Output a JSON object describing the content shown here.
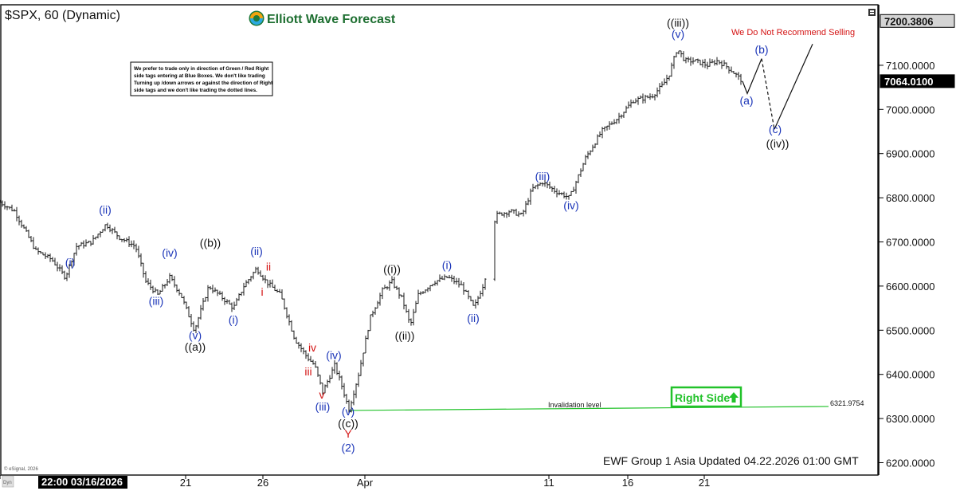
{
  "header": {
    "title": "$SPX, 60 (Dynamic)",
    "brand": "Elliott Wave Forecast"
  },
  "note": {
    "lines": [
      "We prefer to trade only in direction of Green / Red Right",
      "side tags entering at Blue Boxes. We don't like trading",
      "Turning up /down arrows or against the direction of Right",
      "side tags and we don't like trading the dotted lines."
    ]
  },
  "footer": {
    "updated": "EWF Group 1 Asia Updated 04.22.2026 01:00 GMT",
    "esignal": "© eSignal, 2026",
    "start_date": "22:00 03/16/2026",
    "corner": "Dyn"
  },
  "badges": {
    "right_side": "Right Side",
    "not_recommend": "We Do Not Recommend Selling",
    "invalidation_label": "Invalidation level",
    "invalidation_value": "6321.9754"
  },
  "colors": {
    "blue": "#1a34b8",
    "red": "#d41414",
    "green": "#22c22a",
    "black": "#111111"
  },
  "chart_data": {
    "type": "ohlc",
    "title": "$SPX, 60 (Dynamic)",
    "y_axis": {
      "min": 6200,
      "max": 7200,
      "ticks": [
        6200,
        6300,
        6400,
        6500,
        6600,
        6700,
        6800,
        6900,
        7000,
        7100
      ],
      "tick_labels": [
        "6200.0000",
        "6300.0000",
        "6400.0000",
        "6500.0000",
        "6600.0000",
        "6700.0000",
        "6800.0000",
        "6900.0000",
        "7000.0000",
        "7100.0000"
      ],
      "price_boxes": [
        {
          "label": "7200.3806",
          "value": 7200.3806
        },
        {
          "label": "7064.0100",
          "value": 7064.01
        }
      ]
    },
    "x_axis": {
      "ticks": [
        {
          "label": "22:00 03/16/2026",
          "bar": 0
        },
        {
          "label": "21",
          "bar": 233
        },
        {
          "label": "26",
          "bar": 330
        },
        {
          "label": "Apr",
          "bar": 458
        },
        {
          "label": "11",
          "bar": 689
        },
        {
          "label": "16",
          "bar": 788
        },
        {
          "label": "21",
          "bar": 884
        }
      ]
    },
    "price_path": [
      [
        0,
        6790
      ],
      [
        18,
        6770
      ],
      [
        45,
        6680
      ],
      [
        65,
        6660
      ],
      [
        82,
        6620
      ],
      [
        96,
        6690
      ],
      [
        115,
        6700
      ],
      [
        133,
        6740
      ],
      [
        150,
        6710
      ],
      [
        170,
        6690
      ],
      [
        183,
        6610
      ],
      [
        198,
        6580
      ],
      [
        213,
        6620
      ],
      [
        227,
        6580
      ],
      [
        244,
        6500
      ],
      [
        262,
        6600
      ],
      [
        275,
        6580
      ],
      [
        293,
        6550
      ],
      [
        306,
        6600
      ],
      [
        322,
        6640
      ],
      [
        334,
        6610
      ],
      [
        352,
        6580
      ],
      [
        370,
        6480
      ],
      [
        385,
        6440
      ],
      [
        395,
        6420
      ],
      [
        405,
        6360
      ],
      [
        420,
        6420
      ],
      [
        428,
        6380
      ],
      [
        438,
        6320
      ],
      [
        450,
        6400
      ],
      [
        465,
        6530
      ],
      [
        480,
        6590
      ],
      [
        492,
        6610
      ],
      [
        505,
        6570
      ],
      [
        515,
        6510
      ],
      [
        525,
        6580
      ],
      [
        545,
        6610
      ],
      [
        562,
        6620
      ],
      [
        580,
        6600
      ],
      [
        595,
        6550
      ],
      [
        608,
        6610
      ],
      [
        622,
        6760
      ],
      [
        640,
        6770
      ],
      [
        655,
        6760
      ],
      [
        668,
        6820
      ],
      [
        681,
        6835
      ],
      [
        697,
        6815
      ],
      [
        715,
        6800
      ],
      [
        735,
        6890
      ],
      [
        755,
        6950
      ],
      [
        775,
        6980
      ],
      [
        795,
        7020
      ],
      [
        818,
        7030
      ],
      [
        832,
        7055
      ],
      [
        840,
        7080
      ],
      [
        850,
        7138
      ],
      [
        860,
        7110
      ],
      [
        872,
        7110
      ],
      [
        888,
        7100
      ],
      [
        900,
        7110
      ],
      [
        910,
        7100
      ],
      [
        920,
        7085
      ],
      [
        932,
        7064
      ]
    ],
    "projection": {
      "solid": [
        [
          932,
          7064
        ],
        [
          938,
          7036
        ],
        [
          956,
          7115
        ]
      ],
      "dashed": [
        [
          956,
          7115
        ],
        [
          972,
          6955
        ]
      ],
      "arrow": [
        [
          972,
          6955
        ],
        [
          1020,
          7148
        ]
      ]
    },
    "invalidation_level": 6321.9754,
    "invalidation_span": [
      438,
      1040
    ],
    "wave_labels": [
      {
        "text": "(i)",
        "bar": 88,
        "price": 6645,
        "color": "blue"
      },
      {
        "text": "(ii)",
        "bar": 132,
        "price": 6764,
        "color": "blue"
      },
      {
        "text": "(iii)",
        "bar": 196,
        "price": 6557,
        "color": "blue"
      },
      {
        "text": "(iv)",
        "bar": 213,
        "price": 6667,
        "color": "blue"
      },
      {
        "text": "(v)",
        "bar": 245,
        "price": 6480,
        "color": "blue"
      },
      {
        "text": "((a))",
        "bar": 245,
        "price": 6454,
        "color": "black"
      },
      {
        "text": "((b))",
        "bar": 264,
        "price": 6689,
        "color": "black"
      },
      {
        "text": "(i)",
        "bar": 293,
        "price": 6515,
        "color": "blue"
      },
      {
        "text": "(ii)",
        "bar": 322,
        "price": 6670,
        "color": "blue"
      },
      {
        "text": "ii",
        "bar": 337,
        "price": 6635,
        "color": "red"
      },
      {
        "text": "i",
        "bar": 329,
        "price": 6578,
        "color": "red"
      },
      {
        "text": "iv",
        "bar": 392,
        "price": 6452,
        "color": "red"
      },
      {
        "text": "iii",
        "bar": 387,
        "price": 6398,
        "color": "red"
      },
      {
        "text": "(iv)",
        "bar": 419,
        "price": 6435,
        "color": "blue"
      },
      {
        "text": "v",
        "bar": 404,
        "price": 6345,
        "color": "red"
      },
      {
        "text": "(iii)",
        "bar": 405,
        "price": 6318,
        "color": "blue"
      },
      {
        "text": "(v)",
        "bar": 437,
        "price": 6307,
        "color": "blue"
      },
      {
        "text": "((c))",
        "bar": 437,
        "price": 6280,
        "color": "black"
      },
      {
        "text": "Y",
        "bar": 437,
        "price": 6257,
        "color": "red"
      },
      {
        "text": "(2)",
        "bar": 437,
        "price": 6225,
        "color": "blue"
      },
      {
        "text": "((i))",
        "bar": 492,
        "price": 6630,
        "color": "black"
      },
      {
        "text": "((ii))",
        "bar": 508,
        "price": 6479,
        "color": "black"
      },
      {
        "text": "(i)",
        "bar": 561,
        "price": 6639,
        "color": "blue"
      },
      {
        "text": "(ii)",
        "bar": 594,
        "price": 6519,
        "color": "blue"
      },
      {
        "text": "(iii)",
        "bar": 681,
        "price": 6840,
        "color": "blue"
      },
      {
        "text": "(iv)",
        "bar": 717,
        "price": 6774,
        "color": "blue"
      },
      {
        "text": "((iii))",
        "bar": 851,
        "price": 7187,
        "color": "black"
      },
      {
        "text": "(v)",
        "bar": 851,
        "price": 7162,
        "color": "blue"
      },
      {
        "text": "(b)",
        "bar": 956,
        "price": 7127,
        "color": "blue"
      },
      {
        "text": "(a)",
        "bar": 937,
        "price": 7011,
        "color": "blue"
      },
      {
        "text": "(c)",
        "bar": 973,
        "price": 6946,
        "color": "blue"
      },
      {
        "text": "((iv))",
        "bar": 976,
        "price": 6914,
        "color": "black"
      }
    ]
  }
}
